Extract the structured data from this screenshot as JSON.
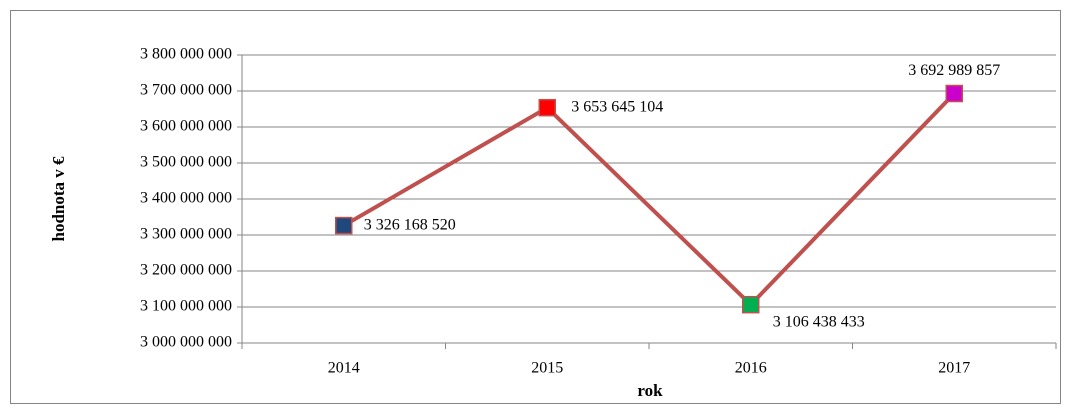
{
  "chart_data": {
    "type": "line",
    "categories": [
      "2014",
      "2015",
      "2016",
      "2017"
    ],
    "values": [
      3326168520,
      3653645104,
      3106438433,
      3692989857
    ],
    "value_labels": [
      "3 326 168 520",
      "3 653 645 104",
      "3 106 438 433",
      "3 692 989 857"
    ],
    "color": "#c0504d",
    "point_colors": [
      "#1f497d",
      "#ff0000",
      "#00b050",
      "#cc00cc"
    ],
    "xlabel": "rok",
    "ylabel": "hodnota v €",
    "ylim": [
      3000000000,
      3800000000
    ],
    "yticks": [
      {
        "value": 3000000000,
        "label": "3 000 000 000"
      },
      {
        "value": 3100000000,
        "label": "3 100 000 000"
      },
      {
        "value": 3200000000,
        "label": "3 200 000 000"
      },
      {
        "value": 3300000000,
        "label": "3 300 000 000"
      },
      {
        "value": 3400000000,
        "label": "3 400 000 000"
      },
      {
        "value": 3500000000,
        "label": "3 500 000 000"
      },
      {
        "value": 3600000000,
        "label": "3 600 000 000"
      },
      {
        "value": 3700000000,
        "label": "3 700 000 000"
      },
      {
        "value": 3800000000,
        "label": "3 800 000 000"
      }
    ],
    "grid": true
  }
}
